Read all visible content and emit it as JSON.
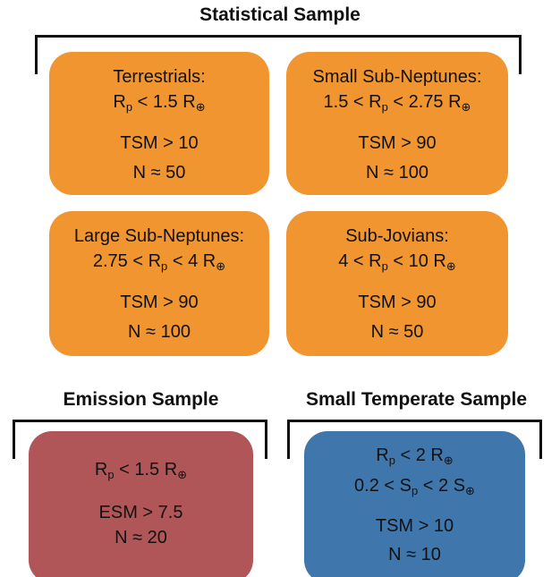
{
  "statistical_sample": {
    "title": "Statistical Sample",
    "groups": [
      {
        "lines": [
          "Terrestrials:",
          [
            "R",
            "p",
            " < 1.5 R",
            "⊕"
          ],
          "TSM > 10",
          "N ≈ 50"
        ]
      },
      {
        "lines": [
          "Small Sub-Neptunes:",
          [
            "1.5 < R",
            "p",
            " < 2.75 R",
            "⊕"
          ],
          "TSM > 90",
          "N ≈ 100"
        ]
      },
      {
        "lines": [
          "Large Sub-Neptunes:",
          [
            "2.75 < R",
            "p",
            " < 4 R",
            "⊕"
          ],
          "TSM > 90",
          "N ≈ 100"
        ]
      },
      {
        "lines": [
          "Sub-Jovians:",
          [
            "4 < R",
            "p",
            " < 10 R",
            "⊕"
          ],
          "TSM > 90",
          "N ≈ 50"
        ]
      }
    ]
  },
  "emission_sample": {
    "title": "Emission Sample",
    "lines": [
      [
        "R",
        "p",
        " < 1.5 R",
        "⊕"
      ],
      "ESM > 7.5",
      "N ≈ 20"
    ]
  },
  "small_temperate_sample": {
    "title": "Small Temperate Sample",
    "lines": [
      [
        "R",
        "p",
        " < 2 R",
        "⊕"
      ],
      [
        "0.2 < S",
        "p",
        " < 2 S",
        "⊕"
      ],
      "TSM > 10",
      "N ≈ 10"
    ]
  }
}
